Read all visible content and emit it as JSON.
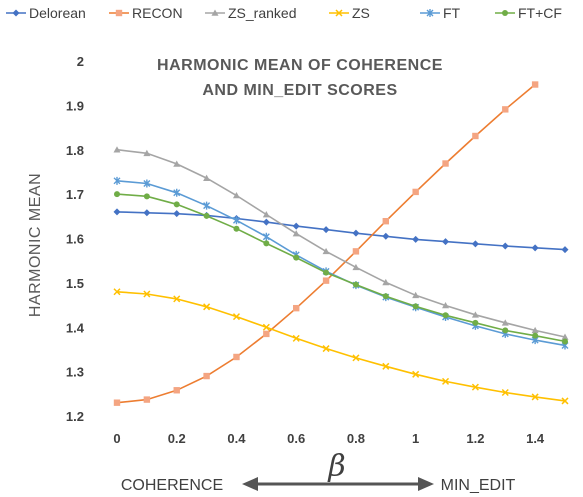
{
  "chart_data": {
    "type": "line",
    "title": "HARMONIC MEAN OF COHERENCE AND MIN_EDIT SCORES",
    "title_lines": [
      "HARMONIC MEAN OF COHERENCE",
      "AND MIN_EDIT SCORES"
    ],
    "ylabel": "HARMONIC MEAN",
    "xlabel": "β",
    "x_axis_left_label": "COHERENCE",
    "x_axis_right_label": "MIN_EDIT",
    "ylim": [
      1.2,
      2.0
    ],
    "xlim": [
      0,
      1.5
    ],
    "x_ticks": [
      "0",
      "0.2",
      "0.4",
      "0.6",
      "0.8",
      "1",
      "1.2",
      "1.4"
    ],
    "y_ticks": [
      "1.2",
      "1.3",
      "1.4",
      "1.5",
      "1.6",
      "1.7",
      "1.8",
      "1.9",
      "2"
    ],
    "legend_position": "top",
    "grid": false,
    "x": [
      0,
      0.1,
      0.2,
      0.3,
      0.4,
      0.5,
      0.6,
      0.7,
      0.8,
      0.9,
      1.0,
      1.1,
      1.2,
      1.3,
      1.4,
      1.5
    ],
    "series": [
      {
        "name": "Delorean",
        "color": "#4472c4",
        "marker": "diamond",
        "values": [
          1.66,
          1.658,
          1.656,
          1.652,
          1.645,
          1.637,
          1.628,
          1.62,
          1.612,
          1.605,
          1.598,
          1.593,
          1.588,
          1.583,
          1.579,
          1.575
        ]
      },
      {
        "name": "RECON",
        "color": "#ed7d31",
        "marker": "square",
        "marker_color": "#f4a582",
        "values": [
          1.23,
          1.237,
          1.258,
          1.29,
          1.333,
          1.385,
          1.443,
          1.505,
          1.571,
          1.639,
          1.705,
          1.769,
          1.831,
          1.891,
          1.947,
          null
        ]
      },
      {
        "name": "ZS_ranked",
        "color": "#a5a5a5",
        "marker": "triangle",
        "values": [
          1.8,
          1.792,
          1.768,
          1.736,
          1.697,
          1.654,
          1.611,
          1.571,
          1.535,
          1.501,
          1.472,
          1.449,
          1.428,
          1.41,
          1.393,
          1.378
        ]
      },
      {
        "name": "ZS",
        "color": "#ffc000",
        "marker": "x",
        "values": [
          1.48,
          1.475,
          1.464,
          1.446,
          1.424,
          1.4,
          1.375,
          1.352,
          1.331,
          1.312,
          1.294,
          1.278,
          1.265,
          1.253,
          1.243,
          1.234
        ]
      },
      {
        "name": "FT",
        "color": "#5b9bd5",
        "marker": "asterisk",
        "values": [
          1.73,
          1.724,
          1.703,
          1.674,
          1.641,
          1.604,
          1.563,
          1.526,
          1.495,
          1.468,
          1.445,
          1.423,
          1.403,
          1.385,
          1.371,
          1.359
        ]
      },
      {
        "name": "FT+CF",
        "color": "#70ad47",
        "marker": "circle",
        "values": [
          1.7,
          1.695,
          1.677,
          1.651,
          1.622,
          1.589,
          1.557,
          1.523,
          1.496,
          1.47,
          1.447,
          1.427,
          1.41,
          1.393,
          1.381,
          1.368
        ]
      }
    ]
  }
}
